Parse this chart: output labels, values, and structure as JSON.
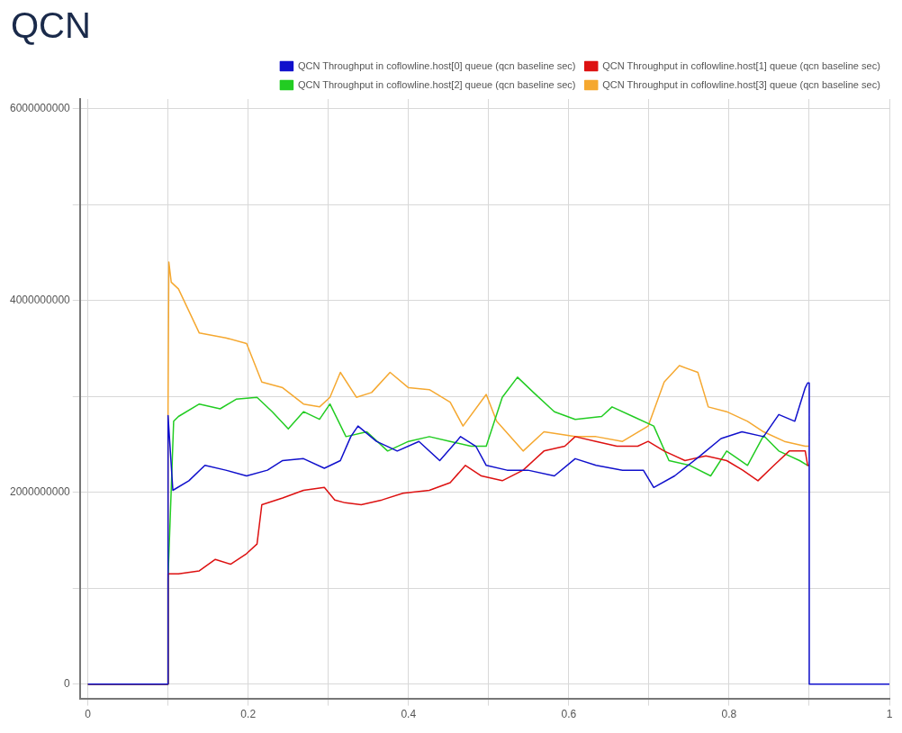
{
  "chart_data": {
    "type": "line",
    "title": "QCN",
    "legend": "top right",
    "grid": true,
    "marker": "none",
    "line_style": "solid",
    "xlim": [
      -0.01,
      1
    ],
    "ylim": [
      -150000000,
      6100000000
    ],
    "xticks": [
      0,
      {
        "value": 0.1,
        "label": null
      },
      0.2,
      {
        "value": 0.3,
        "label": null
      },
      0.4,
      {
        "value": 0.5,
        "label": null
      },
      0.6,
      {
        "value": 0.7,
        "label": null
      },
      0.8,
      {
        "value": 0.9,
        "label": null
      },
      1
    ],
    "yticks": [
      0,
      {
        "value": 1000000000,
        "label": null
      },
      2000000000,
      {
        "value": 3000000000,
        "label": null
      },
      4000000000,
      {
        "value": 5000000000,
        "label": null
      },
      6000000000
    ],
    "series": [
      {
        "name": "QCN Throughput in coflowline.host[0] queue (qcn baseline sec)",
        "color": "#1010cc",
        "x": [
          0,
          0.1,
          0.1,
          0.106,
          0.126,
          0.146,
          0.172,
          0.198,
          0.224,
          0.243,
          0.269,
          0.295,
          0.315,
          0.328,
          0.337,
          0.36,
          0.386,
          0.413,
          0.439,
          0.465,
          0.484,
          0.497,
          0.523,
          0.549,
          0.582,
          0.608,
          0.634,
          0.667,
          0.693,
          0.706,
          0.732,
          0.764,
          0.79,
          0.816,
          0.843,
          0.862,
          0.882,
          0.895,
          0.898,
          0.9,
          0.9,
          1
        ],
        "values": [
          0,
          0,
          2800000000,
          2020000000,
          2120000000,
          2280000000,
          2230000000,
          2170000000,
          2230000000,
          2330000000,
          2350000000,
          2250000000,
          2330000000,
          2580000000,
          2690000000,
          2530000000,
          2430000000,
          2530000000,
          2330000000,
          2580000000,
          2480000000,
          2280000000,
          2230000000,
          2230000000,
          2170000000,
          2350000000,
          2280000000,
          2230000000,
          2230000000,
          2050000000,
          2170000000,
          2380000000,
          2560000000,
          2630000000,
          2580000000,
          2810000000,
          2740000000,
          3090000000,
          3140000000,
          3140000000,
          0,
          0
        ]
      },
      {
        "name": "QCN Throughput in coflowline.host[1] queue (qcn baseline sec)",
        "color": "#dd1111",
        "x": [
          0,
          0.1,
          0.1,
          0.113,
          0.139,
          0.159,
          0.178,
          0.198,
          0.211,
          0.217,
          0.243,
          0.269,
          0.295,
          0.308,
          0.321,
          0.341,
          0.367,
          0.393,
          0.426,
          0.452,
          0.471,
          0.491,
          0.517,
          0.543,
          0.569,
          0.595,
          0.608,
          0.634,
          0.66,
          0.686,
          0.699,
          0.719,
          0.745,
          0.771,
          0.797,
          0.817,
          0.836,
          0.856,
          0.875,
          0.895,
          0.898,
          0.9
        ],
        "values": [
          0,
          0,
          1150000000,
          1150000000,
          1180000000,
          1300000000,
          1250000000,
          1360000000,
          1460000000,
          1870000000,
          1940000000,
          2020000000,
          2050000000,
          1920000000,
          1890000000,
          1870000000,
          1920000000,
          1990000000,
          2020000000,
          2100000000,
          2280000000,
          2170000000,
          2120000000,
          2230000000,
          2430000000,
          2480000000,
          2580000000,
          2530000000,
          2480000000,
          2480000000,
          2530000000,
          2430000000,
          2330000000,
          2380000000,
          2330000000,
          2230000000,
          2120000000,
          2280000000,
          2430000000,
          2430000000,
          2280000000,
          2280000000
        ]
      },
      {
        "name": "QCN Throughput in coflowline.host[2] queue (qcn baseline sec)",
        "color": "#22cc22",
        "x": [
          0,
          0.1,
          0.1,
          0.107,
          0.113,
          0.139,
          0.165,
          0.185,
          0.211,
          0.23,
          0.25,
          0.269,
          0.289,
          0.302,
          0.322,
          0.348,
          0.374,
          0.4,
          0.426,
          0.452,
          0.478,
          0.497,
          0.517,
          0.536,
          0.556,
          0.582,
          0.608,
          0.641,
          0.654,
          0.68,
          0.706,
          0.725,
          0.751,
          0.777,
          0.797,
          0.823,
          0.843,
          0.862,
          0.888,
          0.898,
          0.9
        ],
        "values": [
          0,
          0,
          1100000000,
          2740000000,
          2790000000,
          2920000000,
          2870000000,
          2970000000,
          2990000000,
          2840000000,
          2660000000,
          2840000000,
          2760000000,
          2920000000,
          2580000000,
          2630000000,
          2430000000,
          2530000000,
          2580000000,
          2530000000,
          2480000000,
          2480000000,
          2990000000,
          3200000000,
          3040000000,
          2840000000,
          2760000000,
          2790000000,
          2890000000,
          2790000000,
          2690000000,
          2330000000,
          2280000000,
          2170000000,
          2430000000,
          2280000000,
          2590000000,
          2430000000,
          2330000000,
          2280000000,
          2280000000
        ]
      },
      {
        "name": "QCN Throughput in coflowline.host[3] queue (qcn baseline sec)",
        "color": "#f5a830",
        "x": [
          0,
          0.1,
          0.1,
          0.101,
          0.104,
          0.113,
          0.139,
          0.172,
          0.198,
          0.217,
          0.243,
          0.269,
          0.289,
          0.302,
          0.315,
          0.335,
          0.354,
          0.377,
          0.4,
          0.426,
          0.452,
          0.468,
          0.497,
          0.51,
          0.543,
          0.569,
          0.608,
          0.634,
          0.667,
          0.699,
          0.719,
          0.738,
          0.761,
          0.774,
          0.797,
          0.823,
          0.843,
          0.869,
          0.895,
          0.9
        ],
        "values": [
          0,
          0,
          2900000000,
          4400000000,
          4190000000,
          4120000000,
          3660000000,
          3610000000,
          3550000000,
          3150000000,
          3090000000,
          2920000000,
          2890000000,
          2990000000,
          3250000000,
          2990000000,
          3040000000,
          3250000000,
          3090000000,
          3070000000,
          2940000000,
          2690000000,
          3020000000,
          2740000000,
          2430000000,
          2630000000,
          2580000000,
          2580000000,
          2530000000,
          2690000000,
          3150000000,
          3320000000,
          3250000000,
          2890000000,
          2840000000,
          2740000000,
          2630000000,
          2530000000,
          2480000000,
          2480000000
        ]
      }
    ]
  }
}
